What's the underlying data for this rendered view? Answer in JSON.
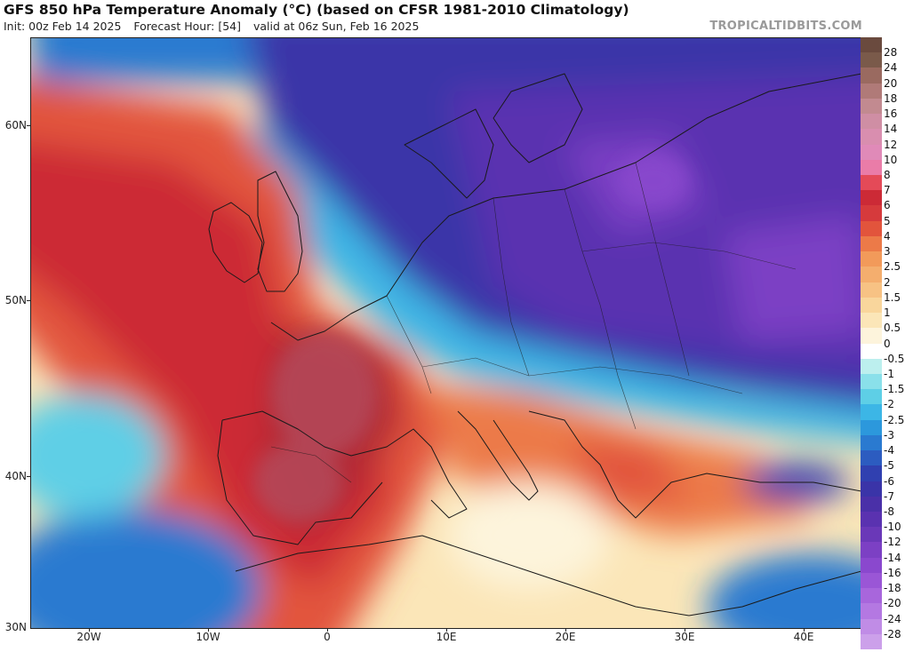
{
  "header": {
    "title": "GFS 850 hPa Temperature Anomaly (°C) (based on CFSR 1981-2010 Climatology)",
    "init": "Init: 00z Feb 14 2025",
    "forecast_hour": "Forecast Hour: [54]",
    "valid": "valid at 06z Sun, Feb 16 2025",
    "brand": "TROPICALTIDBITS.COM"
  },
  "axes": {
    "lat_labels": [
      "60N",
      "50N",
      "40N",
      "30N"
    ],
    "lon_labels": [
      "20W",
      "10W",
      "0",
      "10E",
      "20E",
      "30E",
      "40E"
    ]
  },
  "colorbar": {
    "labels": [
      "28",
      "24",
      "20",
      "18",
      "16",
      "14",
      "12",
      "10",
      "8",
      "7",
      "6",
      "5",
      "4",
      "3",
      "2.5",
      "2",
      "1.5",
      "1",
      "0.5",
      "0",
      "-0.5",
      "-1",
      "-1.5",
      "-2",
      "-2.5",
      "-3",
      "-4",
      "-5",
      "-6",
      "-7",
      "-8",
      "-10",
      "-12",
      "-14",
      "-16",
      "-18",
      "-20",
      "-24",
      "-28"
    ],
    "colors": [
      "#7a5a4a",
      "#9a6a60",
      "#b07a78",
      "#c28a90",
      "#cf8ea4",
      "#d98eaf",
      "#e08ab8",
      "#ea7ca8",
      "#e44a58",
      "#cc2a36",
      "#d63a3c",
      "#e2543c",
      "#ec7a48",
      "#f29a5a",
      "#f4ae6e",
      "#f7c284",
      "#f9d69c",
      "#fbe6b8",
      "#fdf4dc",
      "#ffffff",
      "#bcefee",
      "#8ae0ea",
      "#5ecfe6",
      "#3cb6e6",
      "#2c98dc",
      "#2a7ad0",
      "#2c5cc0",
      "#3040b0",
      "#3a34a8",
      "#4a30a8",
      "#5a32b0",
      "#6a38b8",
      "#7c40c4",
      "#8a48ce",
      "#9a56d6",
      "#a866dc",
      "#b478e2",
      "#c08ce6",
      "#cca0ea"
    ]
  }
}
